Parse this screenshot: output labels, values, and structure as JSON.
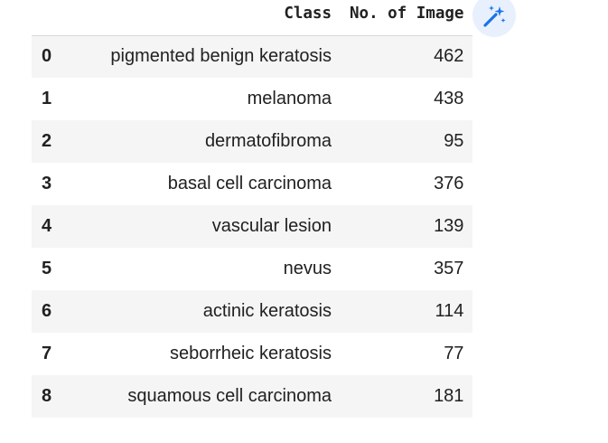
{
  "table": {
    "columns": {
      "index": "",
      "class": "Class",
      "count": "No. of Image"
    },
    "rows": [
      {
        "index": "0",
        "class": "pigmented benign keratosis",
        "count": "462"
      },
      {
        "index": "1",
        "class": "melanoma",
        "count": "438"
      },
      {
        "index": "2",
        "class": "dermatofibroma",
        "count": "95"
      },
      {
        "index": "3",
        "class": "basal cell carcinoma",
        "count": "376"
      },
      {
        "index": "4",
        "class": "vascular lesion",
        "count": "139"
      },
      {
        "index": "5",
        "class": "nevus",
        "count": "357"
      },
      {
        "index": "6",
        "class": "actinic keratosis",
        "count": "114"
      },
      {
        "index": "7",
        "class": "seborrheic keratosis",
        "count": "77"
      },
      {
        "index": "8",
        "class": "squamous cell carcinoma",
        "count": "181"
      }
    ]
  },
  "magic_button": {
    "icon": "magic-wand-icon",
    "background": "#e8f0fe",
    "icon_color": "#1a73e8"
  }
}
